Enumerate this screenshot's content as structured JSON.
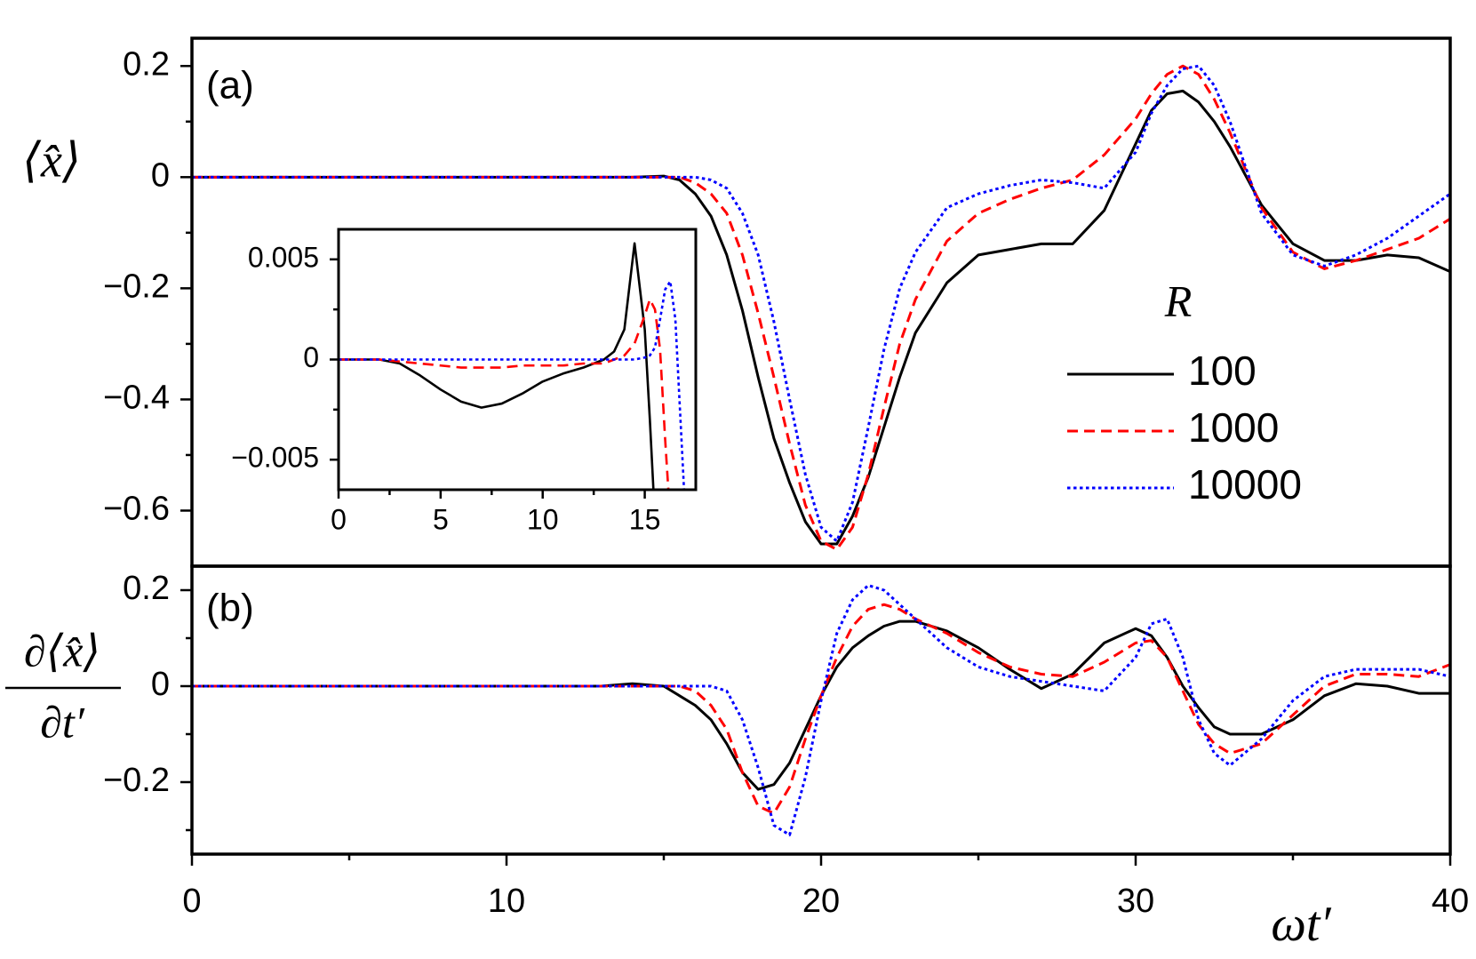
{
  "chart_data": [
    {
      "type": "line",
      "panel_label": "(a)",
      "ylabel": "⟨x̂⟩",
      "legend_title": "R",
      "xlim": [
        0,
        40
      ],
      "ylim": [
        -0.7,
        0.25
      ],
      "yticks": [
        0.2,
        0,
        {
          "value": -0.2,
          "label": "−0.2"
        },
        {
          "value": -0.4,
          "label": "−0.4"
        },
        {
          "value": -0.6,
          "label": "−0.6"
        }
      ],
      "yminor": [
        0.1,
        -0.1,
        -0.3,
        -0.5
      ],
      "x": [
        0,
        2,
        4,
        6,
        8,
        10,
        12,
        13,
        14,
        15,
        15.5,
        16,
        16.5,
        17,
        17.5,
        18,
        18.5,
        19,
        19.5,
        20,
        20.5,
        21,
        21.5,
        22,
        22.5,
        23,
        24,
        25,
        26,
        27,
        28,
        29,
        30,
        30.5,
        31,
        31.5,
        32,
        32.5,
        33,
        34,
        35,
        36,
        37,
        38,
        39,
        40
      ],
      "series": [
        {
          "name": "100",
          "color": "#000000",
          "dash": "solid",
          "values": [
            0,
            0,
            0,
            0,
            0,
            0,
            0,
            0,
            0,
            0.002,
            -0.005,
            -0.03,
            -0.07,
            -0.14,
            -0.24,
            -0.36,
            -0.47,
            -0.55,
            -0.62,
            -0.66,
            -0.66,
            -0.61,
            -0.54,
            -0.45,
            -0.36,
            -0.28,
            -0.19,
            -0.14,
            -0.13,
            -0.12,
            -0.12,
            -0.06,
            0.06,
            0.12,
            0.15,
            0.155,
            0.135,
            0.1,
            0.055,
            -0.05,
            -0.12,
            -0.15,
            -0.15,
            -0.14,
            -0.145,
            -0.17
          ]
        },
        {
          "name": "1000",
          "color": "#ff0000",
          "dash": "dashed",
          "values": [
            0,
            0,
            0,
            0,
            0,
            0,
            0,
            0,
            0,
            0,
            0,
            -0.01,
            -0.03,
            -0.065,
            -0.14,
            -0.245,
            -0.36,
            -0.48,
            -0.59,
            -0.655,
            -0.67,
            -0.63,
            -0.535,
            -0.415,
            -0.3,
            -0.22,
            -0.115,
            -0.065,
            -0.04,
            -0.02,
            -0.005,
            0.04,
            0.105,
            0.15,
            0.185,
            0.2,
            0.185,
            0.14,
            0.08,
            -0.055,
            -0.135,
            -0.165,
            -0.15,
            -0.13,
            -0.11,
            -0.075
          ]
        },
        {
          "name": "10000",
          "color": "#0000ff",
          "dash": "dotted",
          "values": [
            0,
            0,
            0,
            0,
            0,
            0,
            0,
            0,
            0,
            0,
            0,
            0,
            -0.005,
            -0.02,
            -0.065,
            -0.14,
            -0.26,
            -0.4,
            -0.535,
            -0.63,
            -0.655,
            -0.585,
            -0.45,
            -0.31,
            -0.2,
            -0.135,
            -0.055,
            -0.03,
            -0.015,
            -0.005,
            -0.01,
            -0.02,
            0.045,
            0.115,
            0.165,
            0.195,
            0.2,
            0.165,
            0.1,
            -0.065,
            -0.14,
            -0.16,
            -0.14,
            -0.11,
            -0.07,
            -0.03
          ]
        }
      ]
    },
    {
      "type": "line",
      "panel_label": "(b)",
      "ylabel_numerator": "∂⟨x̂⟩",
      "ylabel_denominator": "∂t′",
      "xlabel": "ωt′",
      "xlim": [
        0,
        40
      ],
      "ylim": [
        -0.35,
        0.25
      ],
      "xticks": [
        0,
        10,
        20,
        30,
        40
      ],
      "xminor": [
        5,
        15,
        25,
        35
      ],
      "yticks": [
        0.2,
        0,
        {
          "value": -0.2,
          "label": "−0.2"
        }
      ],
      "yminor": [
        0.1,
        -0.1,
        -0.3
      ],
      "x": [
        0,
        2,
        4,
        6,
        8,
        10,
        12,
        13,
        14,
        15,
        15.5,
        16,
        16.5,
        17,
        17.5,
        18,
        18.5,
        19,
        19.5,
        20,
        20.5,
        21,
        21.5,
        22,
        22.5,
        23,
        24,
        25,
        26,
        27,
        28,
        29,
        30,
        30.5,
        31,
        31.5,
        32,
        32.5,
        33,
        34,
        35,
        36,
        37,
        38,
        39,
        40
      ],
      "series": [
        {
          "color": "#000000",
          "dash": "solid",
          "values": [
            0,
            0,
            0,
            0,
            0,
            0,
            0,
            0,
            0.005,
            0,
            -0.02,
            -0.04,
            -0.07,
            -0.12,
            -0.18,
            -0.215,
            -0.205,
            -0.16,
            -0.09,
            -0.02,
            0.04,
            0.08,
            0.105,
            0.125,
            0.135,
            0.135,
            0.115,
            0.08,
            0.035,
            -0.005,
            0.025,
            0.09,
            0.12,
            0.105,
            0.06,
            0,
            -0.045,
            -0.085,
            -0.1,
            -0.1,
            -0.07,
            -0.02,
            0.005,
            0,
            -0.015,
            -0.015
          ]
        },
        {
          "color": "#ff0000",
          "dash": "dashed",
          "values": [
            0,
            0,
            0,
            0,
            0,
            0,
            0,
            0,
            0,
            0,
            0,
            -0.01,
            -0.04,
            -0.09,
            -0.18,
            -0.25,
            -0.265,
            -0.21,
            -0.11,
            -0.02,
            0.06,
            0.125,
            0.16,
            0.17,
            0.16,
            0.14,
            0.11,
            0.07,
            0.04,
            0.025,
            0.02,
            0.05,
            0.09,
            0.095,
            0.06,
            -0.01,
            -0.08,
            -0.12,
            -0.14,
            -0.12,
            -0.06,
            0,
            0.025,
            0.025,
            0.02,
            0.045
          ]
        },
        {
          "color": "#0000ff",
          "dash": "dotted",
          "values": [
            0,
            0,
            0,
            0,
            0,
            0,
            0,
            0,
            0,
            0,
            0,
            0,
            0,
            -0.01,
            -0.07,
            -0.17,
            -0.29,
            -0.31,
            -0.19,
            -0.03,
            0.11,
            0.18,
            0.21,
            0.2,
            0.17,
            0.14,
            0.08,
            0.04,
            0.02,
            0.01,
            0,
            -0.01,
            0.06,
            0.13,
            0.14,
            0.06,
            -0.07,
            -0.14,
            -0.165,
            -0.11,
            -0.03,
            0.02,
            0.035,
            0.035,
            0.035,
            0.02
          ]
        }
      ]
    },
    {
      "type": "line",
      "xlim": [
        0,
        17.5
      ],
      "ylim": [
        -0.0065,
        0.0065
      ],
      "xticks": [
        0,
        5,
        10,
        15
      ],
      "xminor": [
        2.5,
        7.5,
        12.5
      ],
      "yticks": [
        0.005,
        0,
        {
          "value": -0.005,
          "label": "−0.005"
        }
      ],
      "yminor": [
        0.0025,
        -0.0025
      ],
      "x": [
        0,
        1,
        2,
        3,
        4,
        5,
        6,
        7,
        8,
        9,
        10,
        11,
        12,
        13,
        13.5,
        14,
        14.5,
        15,
        15.25,
        15.5,
        15.75,
        16,
        16.25,
        16.5,
        16.75,
        17
      ],
      "series": [
        {
          "color": "#000000",
          "dash": "solid",
          "values": [
            0,
            0,
            0,
            -0.0002,
            -0.0008,
            -0.0015,
            -0.0021,
            -0.0024,
            -0.0022,
            -0.0017,
            -0.0011,
            -0.0007,
            -0.0004,
            0,
            0.0004,
            0.0015,
            0.0058,
            0.0015,
            -0.003,
            -0.008,
            null,
            null,
            null,
            null,
            null,
            null
          ]
        },
        {
          "color": "#ff0000",
          "dash": "dashed",
          "values": [
            0,
            0,
            0,
            -0.0001,
            -0.0002,
            -0.0003,
            -0.0004,
            -0.0004,
            -0.0004,
            -0.0003,
            -0.0003,
            -0.0003,
            -0.0002,
            -0.0002,
            0,
            0.0002,
            0.0008,
            0.0022,
            0.003,
            0.0025,
            0.0005,
            -0.004,
            -0.008,
            null,
            null,
            null
          ]
        },
        {
          "color": "#0000ff",
          "dash": "dotted",
          "values": [
            0,
            0,
            0,
            0,
            0,
            0,
            0,
            0,
            0,
            0,
            0,
            0,
            0,
            0,
            0,
            0,
            0,
            0.0001,
            0.0002,
            0.0006,
            0.002,
            0.0035,
            0.0039,
            0.002,
            -0.003,
            -0.008
          ]
        }
      ]
    }
  ]
}
